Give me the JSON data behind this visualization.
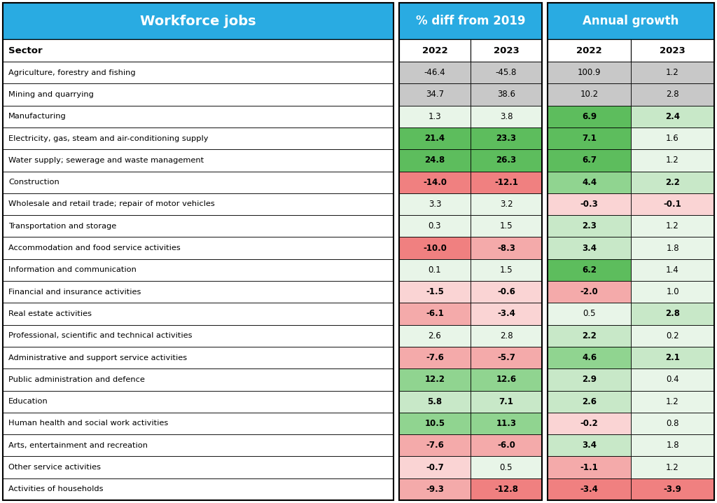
{
  "title_left": "Workforce jobs",
  "title_mid": "% diff from 2019",
  "title_right": "Annual growth",
  "sectors": [
    "Agriculture, forestry and fishing",
    "Mining and quarrying",
    "Manufacturing",
    "Electricity, gas, steam and air-conditioning supply",
    "Water supply; sewerage and waste management",
    "Construction",
    "Wholesale and retail trade; repair of motor vehicles",
    "Transportation and storage",
    "Accommodation and food service activities",
    "Information and communication",
    "Financial and insurance activities",
    "Real estate activities",
    "Professional, scientific and technical activities",
    "Administrative and support service activities",
    "Public administration and defence",
    "Education",
    "Human health and social work activities",
    "Arts, entertainment and recreation",
    "Other service activities",
    "Activities of households"
  ],
  "pct_diff_2022": [
    -46.4,
    34.7,
    1.3,
    21.4,
    24.8,
    -14.0,
    3.3,
    0.3,
    -10.0,
    0.1,
    -1.5,
    -6.1,
    2.6,
    -7.6,
    12.2,
    5.8,
    10.5,
    -7.6,
    -0.7,
    -9.3
  ],
  "pct_diff_2023": [
    -45.8,
    38.6,
    3.8,
    23.3,
    26.3,
    -12.1,
    3.2,
    1.5,
    -8.3,
    1.5,
    -0.6,
    -3.4,
    2.8,
    -5.7,
    12.6,
    7.1,
    11.3,
    -6.0,
    0.5,
    -12.8
  ],
  "annual_2022": [
    100.9,
    10.2,
    6.9,
    7.1,
    6.7,
    4.4,
    -0.3,
    2.3,
    3.4,
    6.2,
    -2.0,
    0.5,
    2.2,
    4.6,
    2.9,
    2.6,
    -0.2,
    3.4,
    -1.1,
    -3.4
  ],
  "annual_2023": [
    1.2,
    2.8,
    2.4,
    1.6,
    1.2,
    2.2,
    -0.1,
    1.2,
    1.8,
    1.4,
    1.0,
    2.8,
    0.2,
    2.1,
    0.4,
    1.2,
    0.8,
    1.8,
    1.2,
    -3.9
  ],
  "header_bg": "#29ABE2",
  "grey_bg": "#C8C8C8",
  "green_strong": "#4CAF50",
  "green_medium": "#81C784",
  "green_light": "#C8E6C9",
  "red_strong": "#F44336",
  "red_medium": "#EF9A9A",
  "red_light": "#FFCDD2",
  "white": "#FFFFFF"
}
